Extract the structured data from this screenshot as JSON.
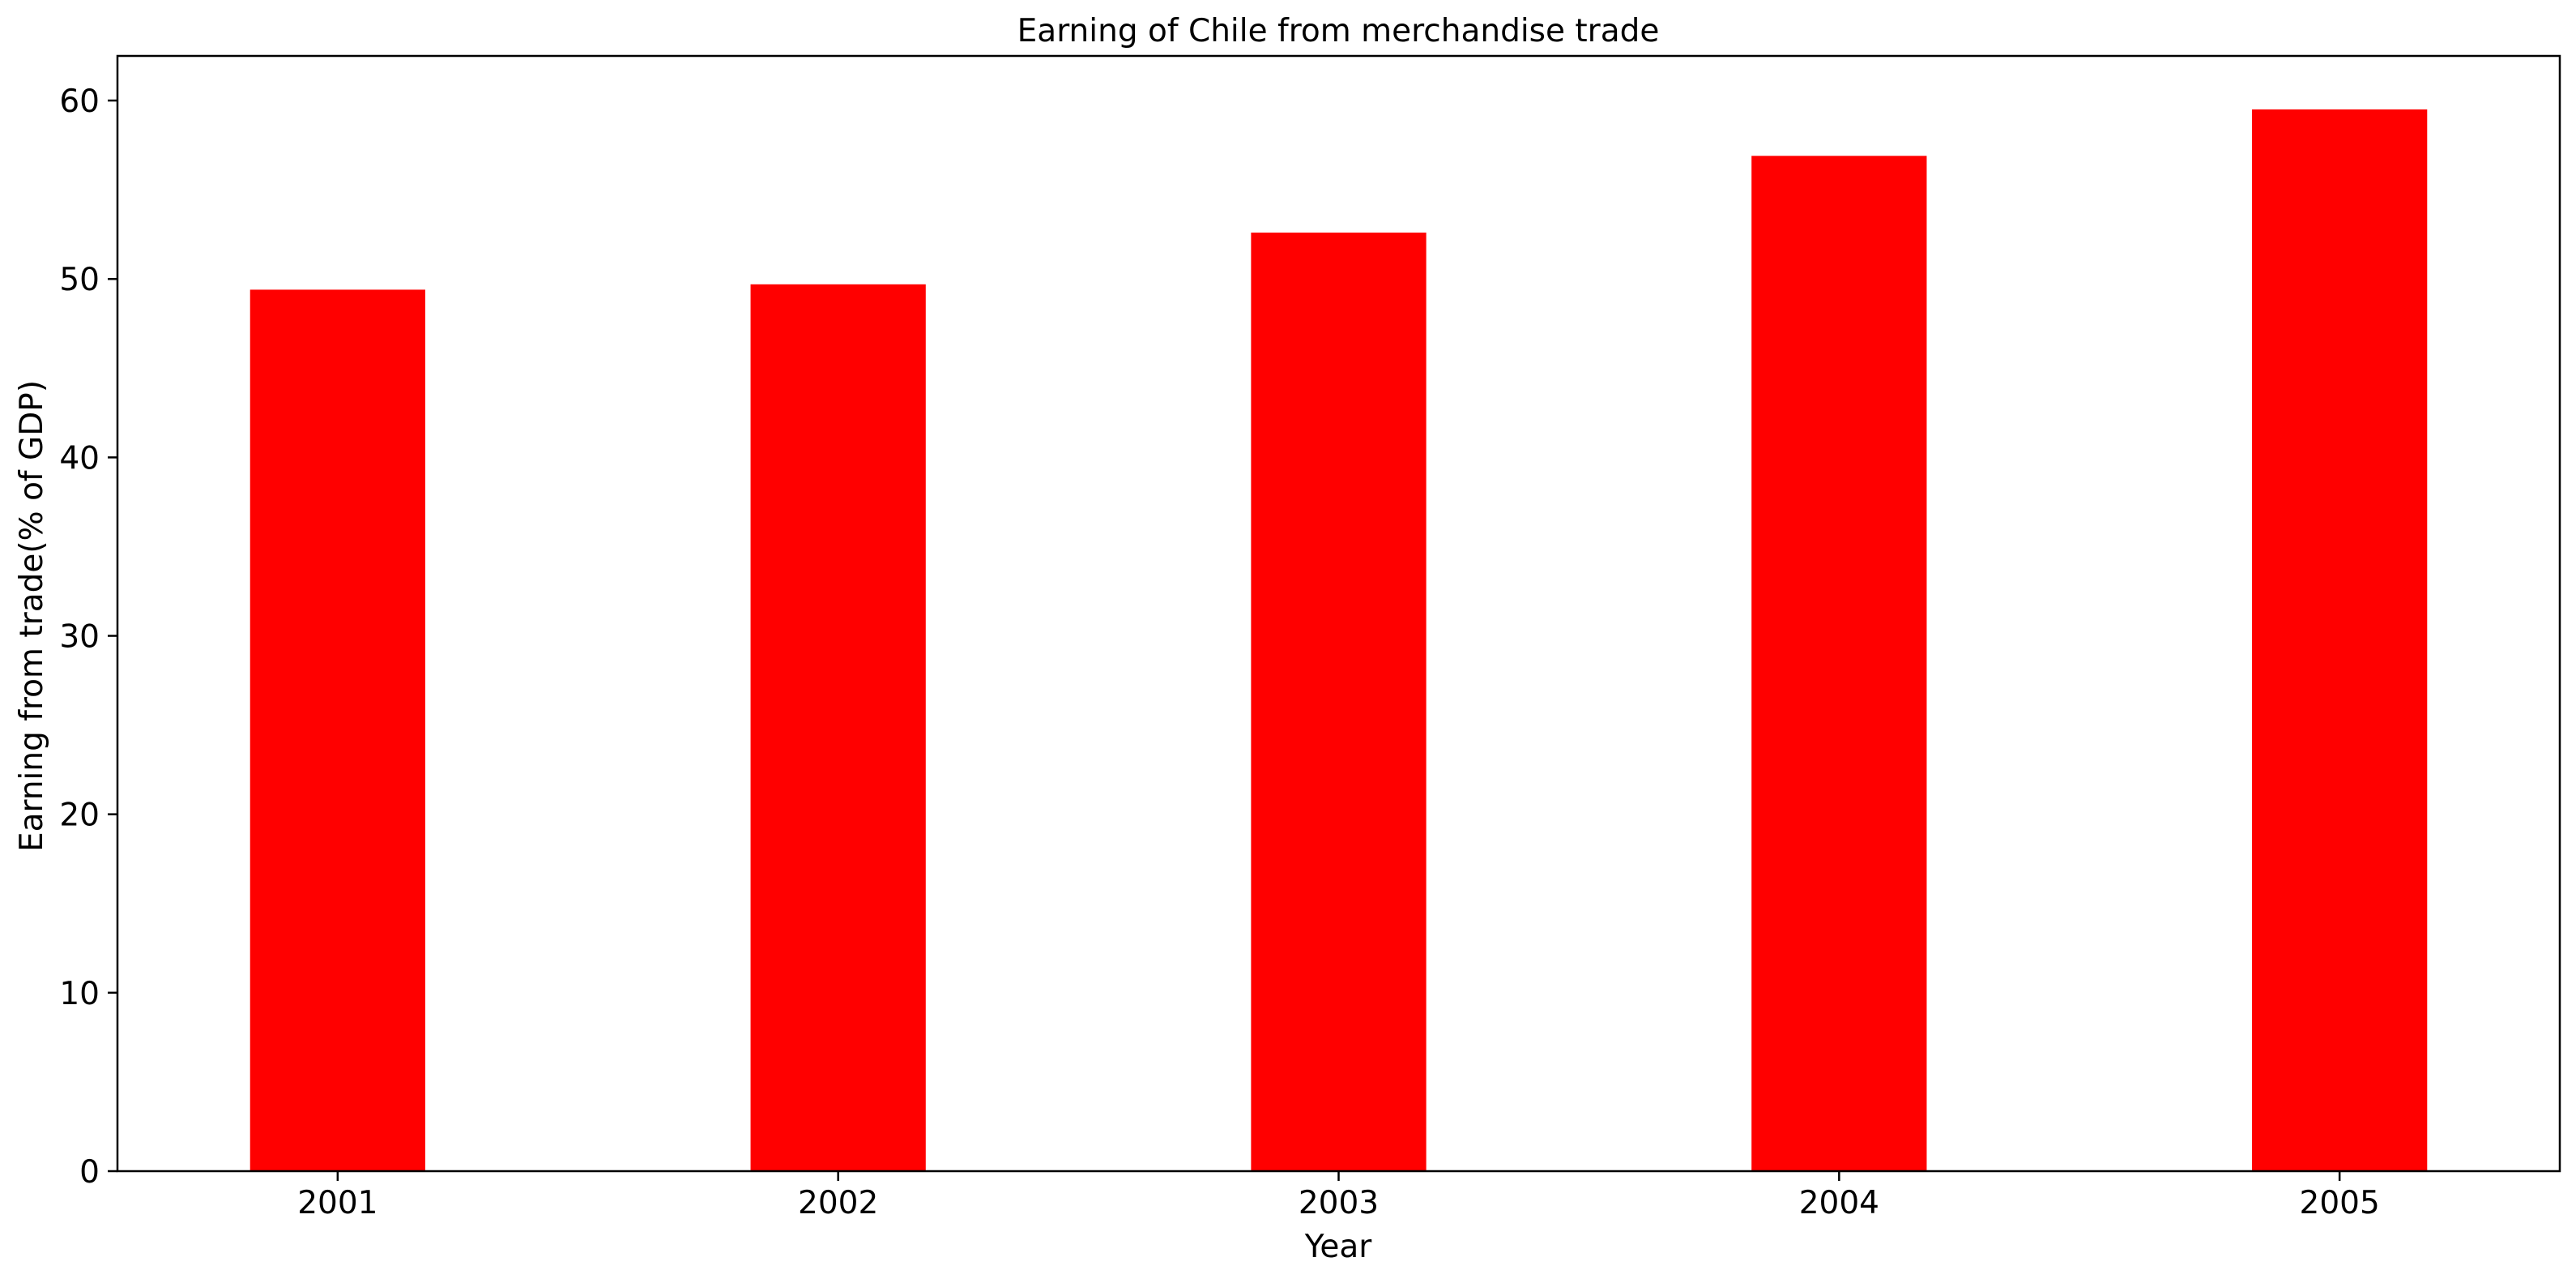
{
  "chart_data": {
    "type": "bar",
    "title": "Earning of Chile from merchandise trade",
    "xlabel": "Year",
    "ylabel": "Earning from trade(% of GDP)",
    "categories": [
      "2001",
      "2002",
      "2003",
      "2004",
      "2005"
    ],
    "values": [
      49.4,
      49.7,
      52.6,
      56.9,
      59.5
    ],
    "ylim": [
      0,
      62.5
    ],
    "yticks": [
      0,
      10,
      20,
      30,
      40,
      50,
      60
    ],
    "grid": false,
    "legend": "none",
    "bar_color": "#ff0000"
  }
}
